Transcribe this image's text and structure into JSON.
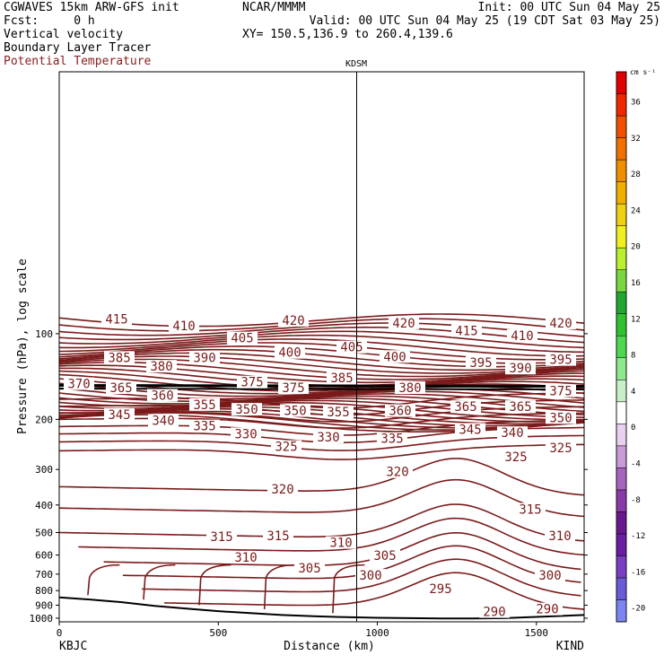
{
  "header": {
    "left": [
      "CGWAVES 15km ARW-GFS init",
      "Fcst:     0 h",
      "Vertical velocity",
      "Boundary Layer Tracer",
      "Potential Temperature"
    ],
    "center": "NCAR/MMMM",
    "right": [
      "Init: 00 UTC Sun 04 May 25",
      "Valid: 00 UTC Sun 04 May 25 (19 CDT Sat 03 May 25)"
    ],
    "xy": "XY= 150.5,136.9 to 260.4,139.6",
    "theta_color": "#7a1a1a"
  },
  "chart_data": {
    "type": "cross-section contour",
    "site_marker": "KDSM",
    "xlabel": "Distance (km)",
    "ylabel": "Pressure (hPa), log scale",
    "xlim": [
      0,
      1650
    ],
    "ylim_hpa": [
      1030,
      12
    ],
    "x_ticks": [
      0,
      500,
      1000,
      1500
    ],
    "y_ticks": [
      100,
      200,
      300,
      400,
      500,
      600,
      700,
      800,
      900,
      1000
    ],
    "x_endpoints": [
      "KBJC",
      "KIND"
    ],
    "site_x_km": 935,
    "colorbar": {
      "unit": "cm s⁻¹",
      "levels": [
        -20,
        -16,
        -12,
        -8,
        -4,
        0,
        4,
        8,
        12,
        16,
        20,
        24,
        28,
        32,
        36
      ],
      "colors": [
        "#7b86f0",
        "#6c5bd8",
        "#7a3fc0",
        "#6a1ea0",
        "#6a1890",
        "#8a3aa8",
        "#a865c0",
        "#c89ad8",
        "#ead0f0",
        "#ffffff",
        "#c8f0c8",
        "#8ee88e",
        "#4fd84f",
        "#30c030",
        "#22a830",
        "#78d840",
        "#b8f030",
        "#f0f020",
        "#f0d010",
        "#f0b000",
        "#f09000",
        "#f07000",
        "#f05000",
        "#f02800",
        "#e00000"
      ]
    },
    "theta_labels": [
      {
        "t": "415",
        "x": 130,
        "p": 90
      },
      {
        "t": "410",
        "x": 205,
        "p": 95
      },
      {
        "t": "420",
        "x": 327,
        "p": 91
      },
      {
        "t": "405",
        "x": 270,
        "p": 105
      },
      {
        "t": "420",
        "x": 450,
        "p": 93
      },
      {
        "t": "415",
        "x": 520,
        "p": 99
      },
      {
        "t": "410",
        "x": 582,
        "p": 103
      },
      {
        "t": "420",
        "x": 625,
        "p": 93
      },
      {
        "t": "385",
        "x": 133,
        "p": 123
      },
      {
        "t": "380",
        "x": 180,
        "p": 132
      },
      {
        "t": "390",
        "x": 228,
        "p": 123
      },
      {
        "t": "400",
        "x": 323,
        "p": 118
      },
      {
        "t": "405",
        "x": 392,
        "p": 113
      },
      {
        "t": "400",
        "x": 440,
        "p": 122
      },
      {
        "t": "395",
        "x": 536,
        "p": 128
      },
      {
        "t": "390",
        "x": 580,
        "p": 134
      },
      {
        "t": "395",
        "x": 625,
        "p": 125
      },
      {
        "t": "370",
        "x": 88,
        "p": 152
      },
      {
        "t": "365",
        "x": 135,
        "p": 157
      },
      {
        "t": "375",
        "x": 281,
        "p": 150
      },
      {
        "t": "375",
        "x": 327,
        "p": 157
      },
      {
        "t": "385",
        "x": 381,
        "p": 145
      },
      {
        "t": "380",
        "x": 457,
        "p": 157
      },
      {
        "t": "375",
        "x": 625,
        "p": 161
      },
      {
        "t": "360",
        "x": 181,
        "p": 167
      },
      {
        "t": "355",
        "x": 228,
        "p": 180
      },
      {
        "t": "350",
        "x": 275,
        "p": 187
      },
      {
        "t": "350",
        "x": 329,
        "p": 189
      },
      {
        "t": "355",
        "x": 377,
        "p": 191
      },
      {
        "t": "360",
        "x": 446,
        "p": 189
      },
      {
        "t": "365",
        "x": 519,
        "p": 183
      },
      {
        "t": "365",
        "x": 580,
        "p": 183
      },
      {
        "t": "350",
        "x": 625,
        "p": 200
      },
      {
        "t": "345",
        "x": 133,
        "p": 195
      },
      {
        "t": "340",
        "x": 182,
        "p": 205
      },
      {
        "t": "335",
        "x": 228,
        "p": 214
      },
      {
        "t": "330",
        "x": 274,
        "p": 228
      },
      {
        "t": "330",
        "x": 366,
        "p": 234
      },
      {
        "t": "335",
        "x": 437,
        "p": 237
      },
      {
        "t": "345",
        "x": 524,
        "p": 220
      },
      {
        "t": "340",
        "x": 571,
        "p": 226
      },
      {
        "t": "325",
        "x": 319,
        "p": 253
      },
      {
        "t": "325",
        "x": 575,
        "p": 275
      },
      {
        "t": "325",
        "x": 625,
        "p": 255
      },
      {
        "t": "320",
        "x": 443,
        "p": 310
      },
      {
        "t": "320",
        "x": 315,
        "p": 357
      },
      {
        "t": "315",
        "x": 591,
        "p": 420
      },
      {
        "t": "315",
        "x": 247,
        "p": 524
      },
      {
        "t": "315",
        "x": 310,
        "p": 520
      },
      {
        "t": "310",
        "x": 624,
        "p": 520
      },
      {
        "t": "310",
        "x": 380,
        "p": 550
      },
      {
        "t": "310",
        "x": 274,
        "p": 620
      },
      {
        "t": "305",
        "x": 429,
        "p": 610
      },
      {
        "t": "305",
        "x": 345,
        "p": 677
      },
      {
        "t": "300",
        "x": 413,
        "p": 717
      },
      {
        "t": "300",
        "x": 613,
        "p": 717
      },
      {
        "t": "295",
        "x": 491,
        "p": 798
      },
      {
        "t": "290",
        "x": 551,
        "p": 962
      },
      {
        "t": "290",
        "x": 610,
        "p": 942
      }
    ]
  }
}
